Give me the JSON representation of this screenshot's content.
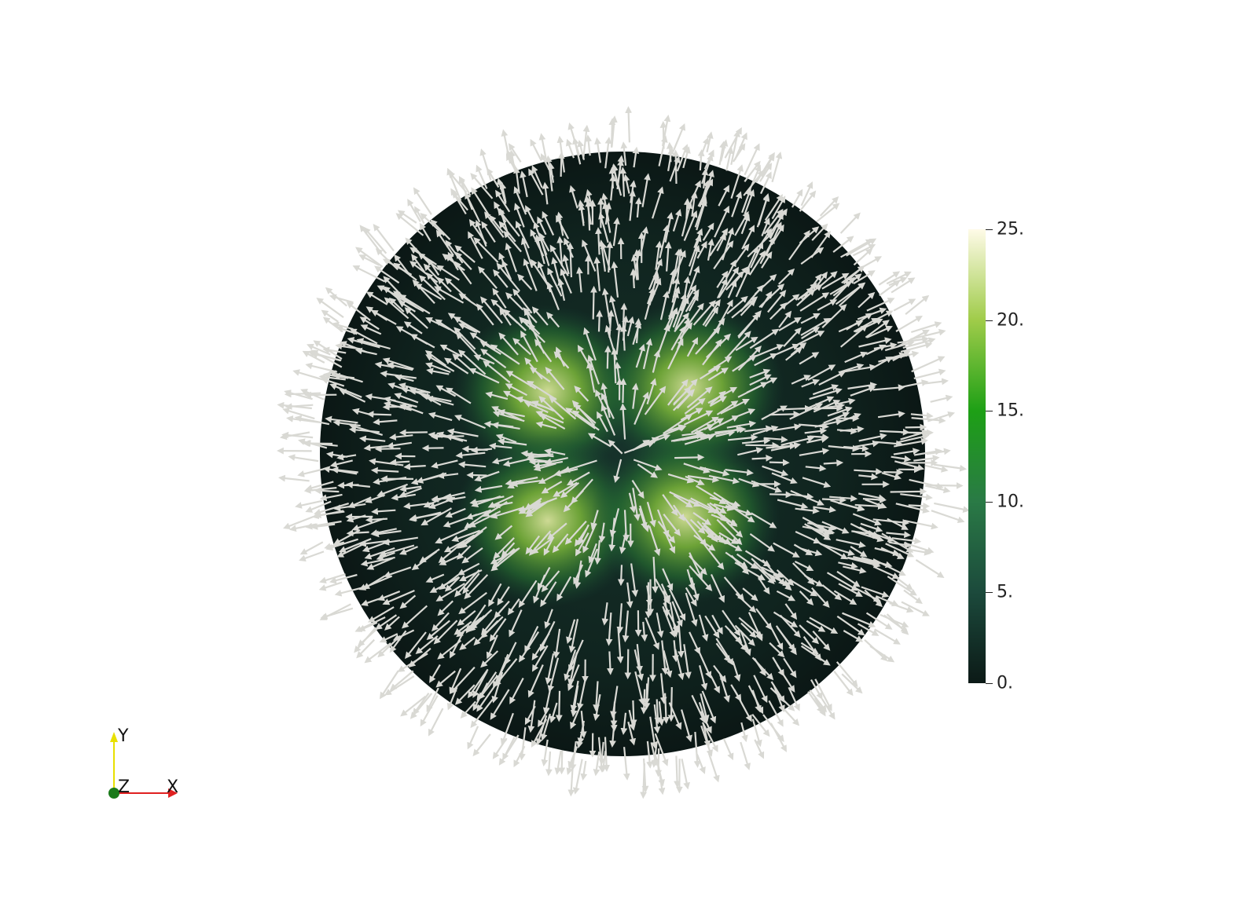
{
  "colorbar": {
    "ticks": [
      "25.",
      "20.",
      "15.",
      "10.",
      "5.",
      "0."
    ],
    "gradient": [
      "#0c1a17",
      "#1c4a3c",
      "#2a7a46",
      "#1ea016",
      "#a0cc4a",
      "#fffbe8"
    ]
  },
  "axes": {
    "x": "X",
    "y": "Y",
    "z": "Z"
  },
  "colors": {
    "sphere_dark": "#0f1e1c",
    "sphere_green": "#2f7a2f",
    "hotspot": "#c9d98a",
    "arrow": "#d9d9d4",
    "x_axis": "#e02020",
    "y_axis": "#e8e000",
    "z_axis": "#1a7a1a"
  }
}
